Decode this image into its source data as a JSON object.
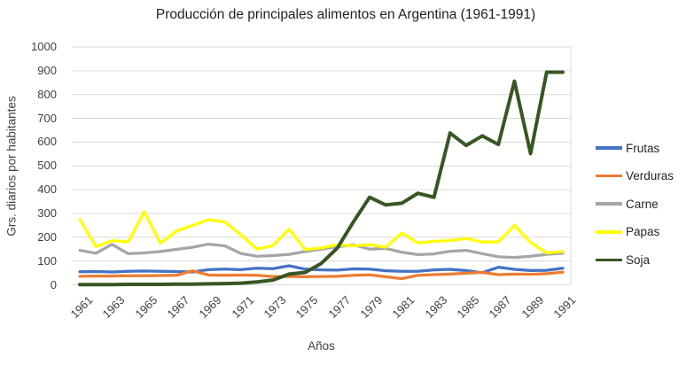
{
  "chart_data": {
    "type": "line",
    "title": "Producción de principales alimentos en Argentina (1961-1991)",
    "xlabel": "Años",
    "ylabel": "Grs. diarios por habitantes",
    "ylim": [
      0,
      1000
    ],
    "yticks": [
      0,
      100,
      200,
      300,
      400,
      500,
      600,
      700,
      800,
      900,
      1000
    ],
    "x": [
      1961,
      1962,
      1963,
      1964,
      1965,
      1966,
      1967,
      1968,
      1969,
      1970,
      1971,
      1972,
      1973,
      1974,
      1975,
      1976,
      1977,
      1978,
      1979,
      1980,
      1981,
      1982,
      1983,
      1984,
      1985,
      1986,
      1987,
      1988,
      1989,
      1990,
      1991
    ],
    "xticklabels": [
      "1961",
      "1963",
      "1965",
      "1967",
      "1969",
      "1971",
      "1973",
      "1975",
      "1977",
      "1979",
      "1981",
      "1983",
      "1985",
      "1987",
      "1989",
      "1991"
    ],
    "grid": "horizontal",
    "legend_position": "right",
    "colors": {
      "grid": "#D9D9D9",
      "axis_text": "#404040",
      "title_text": "#1F1F1F"
    },
    "series": [
      {
        "name": "Frutas",
        "color": "#4472C4",
        "values": [
          55,
          56,
          54,
          57,
          58,
          57,
          56,
          54,
          64,
          66,
          64,
          70,
          68,
          80,
          66,
          63,
          62,
          67,
          66,
          59,
          57,
          57,
          63,
          65,
          60,
          51,
          74,
          65,
          60,
          61,
          70
        ]
      },
      {
        "name": "Verduras",
        "color": "#ED7D31",
        "values": [
          36,
          37,
          37,
          38,
          38,
          39,
          40,
          59,
          41,
          40,
          41,
          40,
          35,
          35,
          34,
          35,
          36,
          40,
          42,
          34,
          26,
          40,
          43,
          45,
          49,
          52,
          43,
          45,
          44,
          47,
          53
        ]
      },
      {
        "name": "Carne",
        "color": "#A5A5A5",
        "values": [
          145,
          133,
          170,
          131,
          134,
          140,
          149,
          158,
          171,
          164,
          132,
          120,
          123,
          128,
          140,
          150,
          160,
          168,
          150,
          153,
          137,
          127,
          130,
          141,
          145,
          131,
          118,
          115,
          120,
          128,
          133
        ]
      },
      {
        "name": "Papas",
        "color": "#FFFF00",
        "values": [
          275,
          160,
          186,
          180,
          308,
          175,
          226,
          250,
          274,
          264,
          211,
          150,
          165,
          234,
          148,
          155,
          168,
          164,
          169,
          158,
          218,
          176,
          183,
          186,
          195,
          180,
          180,
          250,
          178,
          134,
          140
        ]
      },
      {
        "name": "Soja",
        "color": "#375623",
        "values": [
          1,
          1,
          1,
          2,
          2,
          2,
          3,
          3,
          4,
          5,
          7,
          12,
          20,
          45,
          52,
          90,
          155,
          265,
          368,
          336,
          343,
          385,
          368,
          638,
          586,
          626,
          590,
          856,
          552,
          894,
          894
        ]
      }
    ]
  }
}
